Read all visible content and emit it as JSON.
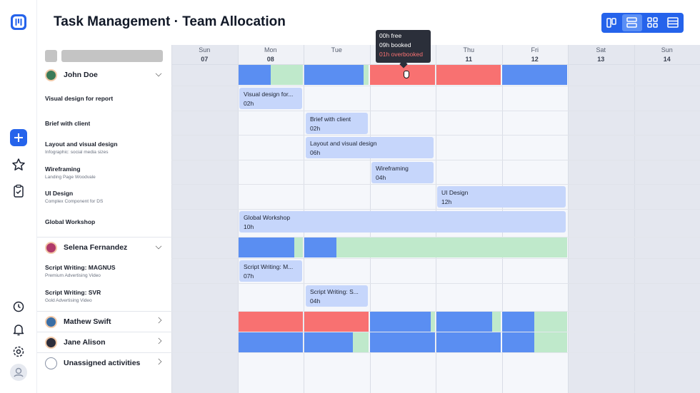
{
  "header": {
    "title": "Task Management · Team Allocation"
  },
  "tooltip": [
    "00h free",
    "09h booked",
    "01h overbooked"
  ],
  "days": [
    {
      "weekday": "Sun",
      "date": "07"
    },
    {
      "weekday": "Mon",
      "date": "08"
    },
    {
      "weekday": "Tue"
    },
    null,
    {
      "weekday": "Thu",
      "date": "11"
    },
    {
      "weekday": "Fri",
      "date": "12"
    },
    {
      "weekday": "Sat",
      "date": "13"
    },
    {
      "weekday": "Sun",
      "date": "14"
    }
  ],
  "people": [
    {
      "name": "John Doe",
      "tasks": [
        {
          "title": "Visual design for report",
          "bar": {
            "label": "Visual design for...",
            "hours": "02h"
          }
        },
        {
          "title": "Brief with client",
          "bar": {
            "label": "Brief with client",
            "hours": "02h"
          }
        },
        {
          "title": "Layout and visual design",
          "subtitle": "Infographic: social media sizes",
          "bar": {
            "label": "Layout and visual design",
            "hours": "06h"
          }
        },
        {
          "title": "Wireframing",
          "subtitle": "Landing Page Woodvale",
          "bar": {
            "label": "Wireframing",
            "hours": "04h"
          }
        },
        {
          "title": "UI Design",
          "subtitle": "Complex Component for DS",
          "bar": {
            "label": "UI Design",
            "hours": "12h"
          }
        },
        {
          "title": "Global Workshop",
          "bar": {
            "label": "Global Workshop",
            "hours": "10h"
          }
        }
      ]
    },
    {
      "name": "Selena Fernandez",
      "tasks": [
        {
          "title": "Script Writing: MAGNUS",
          "subtitle": "Premium Advertising Video",
          "bar": {
            "label": "Script Writing: M...",
            "hours": "07h"
          }
        },
        {
          "title": "Script Writing: SVR",
          "subtitle": "Gold Advertising Video",
          "bar": {
            "label": "Script Writing: S...",
            "hours": "04h"
          }
        }
      ]
    },
    {
      "name": "Mathew Swift"
    },
    {
      "name": "Jane Alison"
    },
    {
      "name": "Unassigned activities"
    }
  ]
}
